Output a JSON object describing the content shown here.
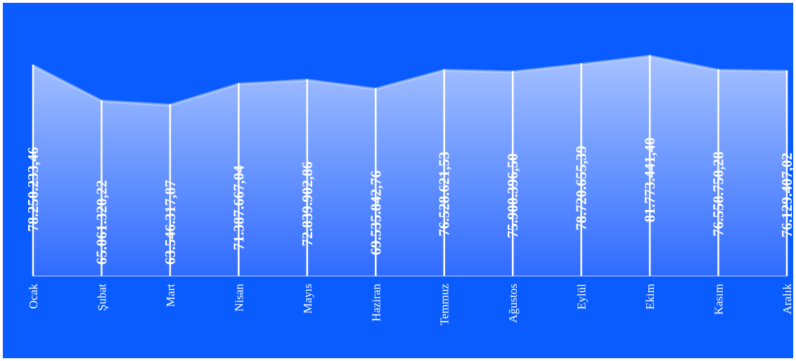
{
  "chart_data": {
    "type": "area",
    "title": "",
    "xlabel": "",
    "ylabel": "",
    "categories": [
      "Ocak",
      "Şubat",
      "Mart",
      "Nisan",
      "Mayıs",
      "Haziran",
      "Temmuz",
      "Ağustos",
      "Eylül",
      "Ekim",
      "Kasım",
      "Aralık"
    ],
    "values": [
      78250233.46,
      65061320.22,
      63546317.87,
      71387667.04,
      72839902.86,
      69535842.76,
      76528621.53,
      75900396.5,
      78720655.39,
      81773441.4,
      76558750.28,
      76129407.02
    ],
    "value_labels": [
      "78.250.233,46",
      "65.061.320,22",
      "63.546.317,87",
      "71.387.667,04",
      "72.839.902,86",
      "69.535.842,76",
      "76.528.621,53",
      "75.900.396,50",
      "78.720.655,39",
      "81.773.441,40",
      "76.558.750,28",
      "76.129.407,02"
    ],
    "ylim": [
      0,
      81773441.4
    ],
    "grid": false,
    "legend": "none"
  },
  "colors": {
    "background": "#0a5cff",
    "area_top": "#a6c1ff",
    "area_bottom": "#2f6bff",
    "drop_line": "#ffffff",
    "text": "#ffffff"
  }
}
